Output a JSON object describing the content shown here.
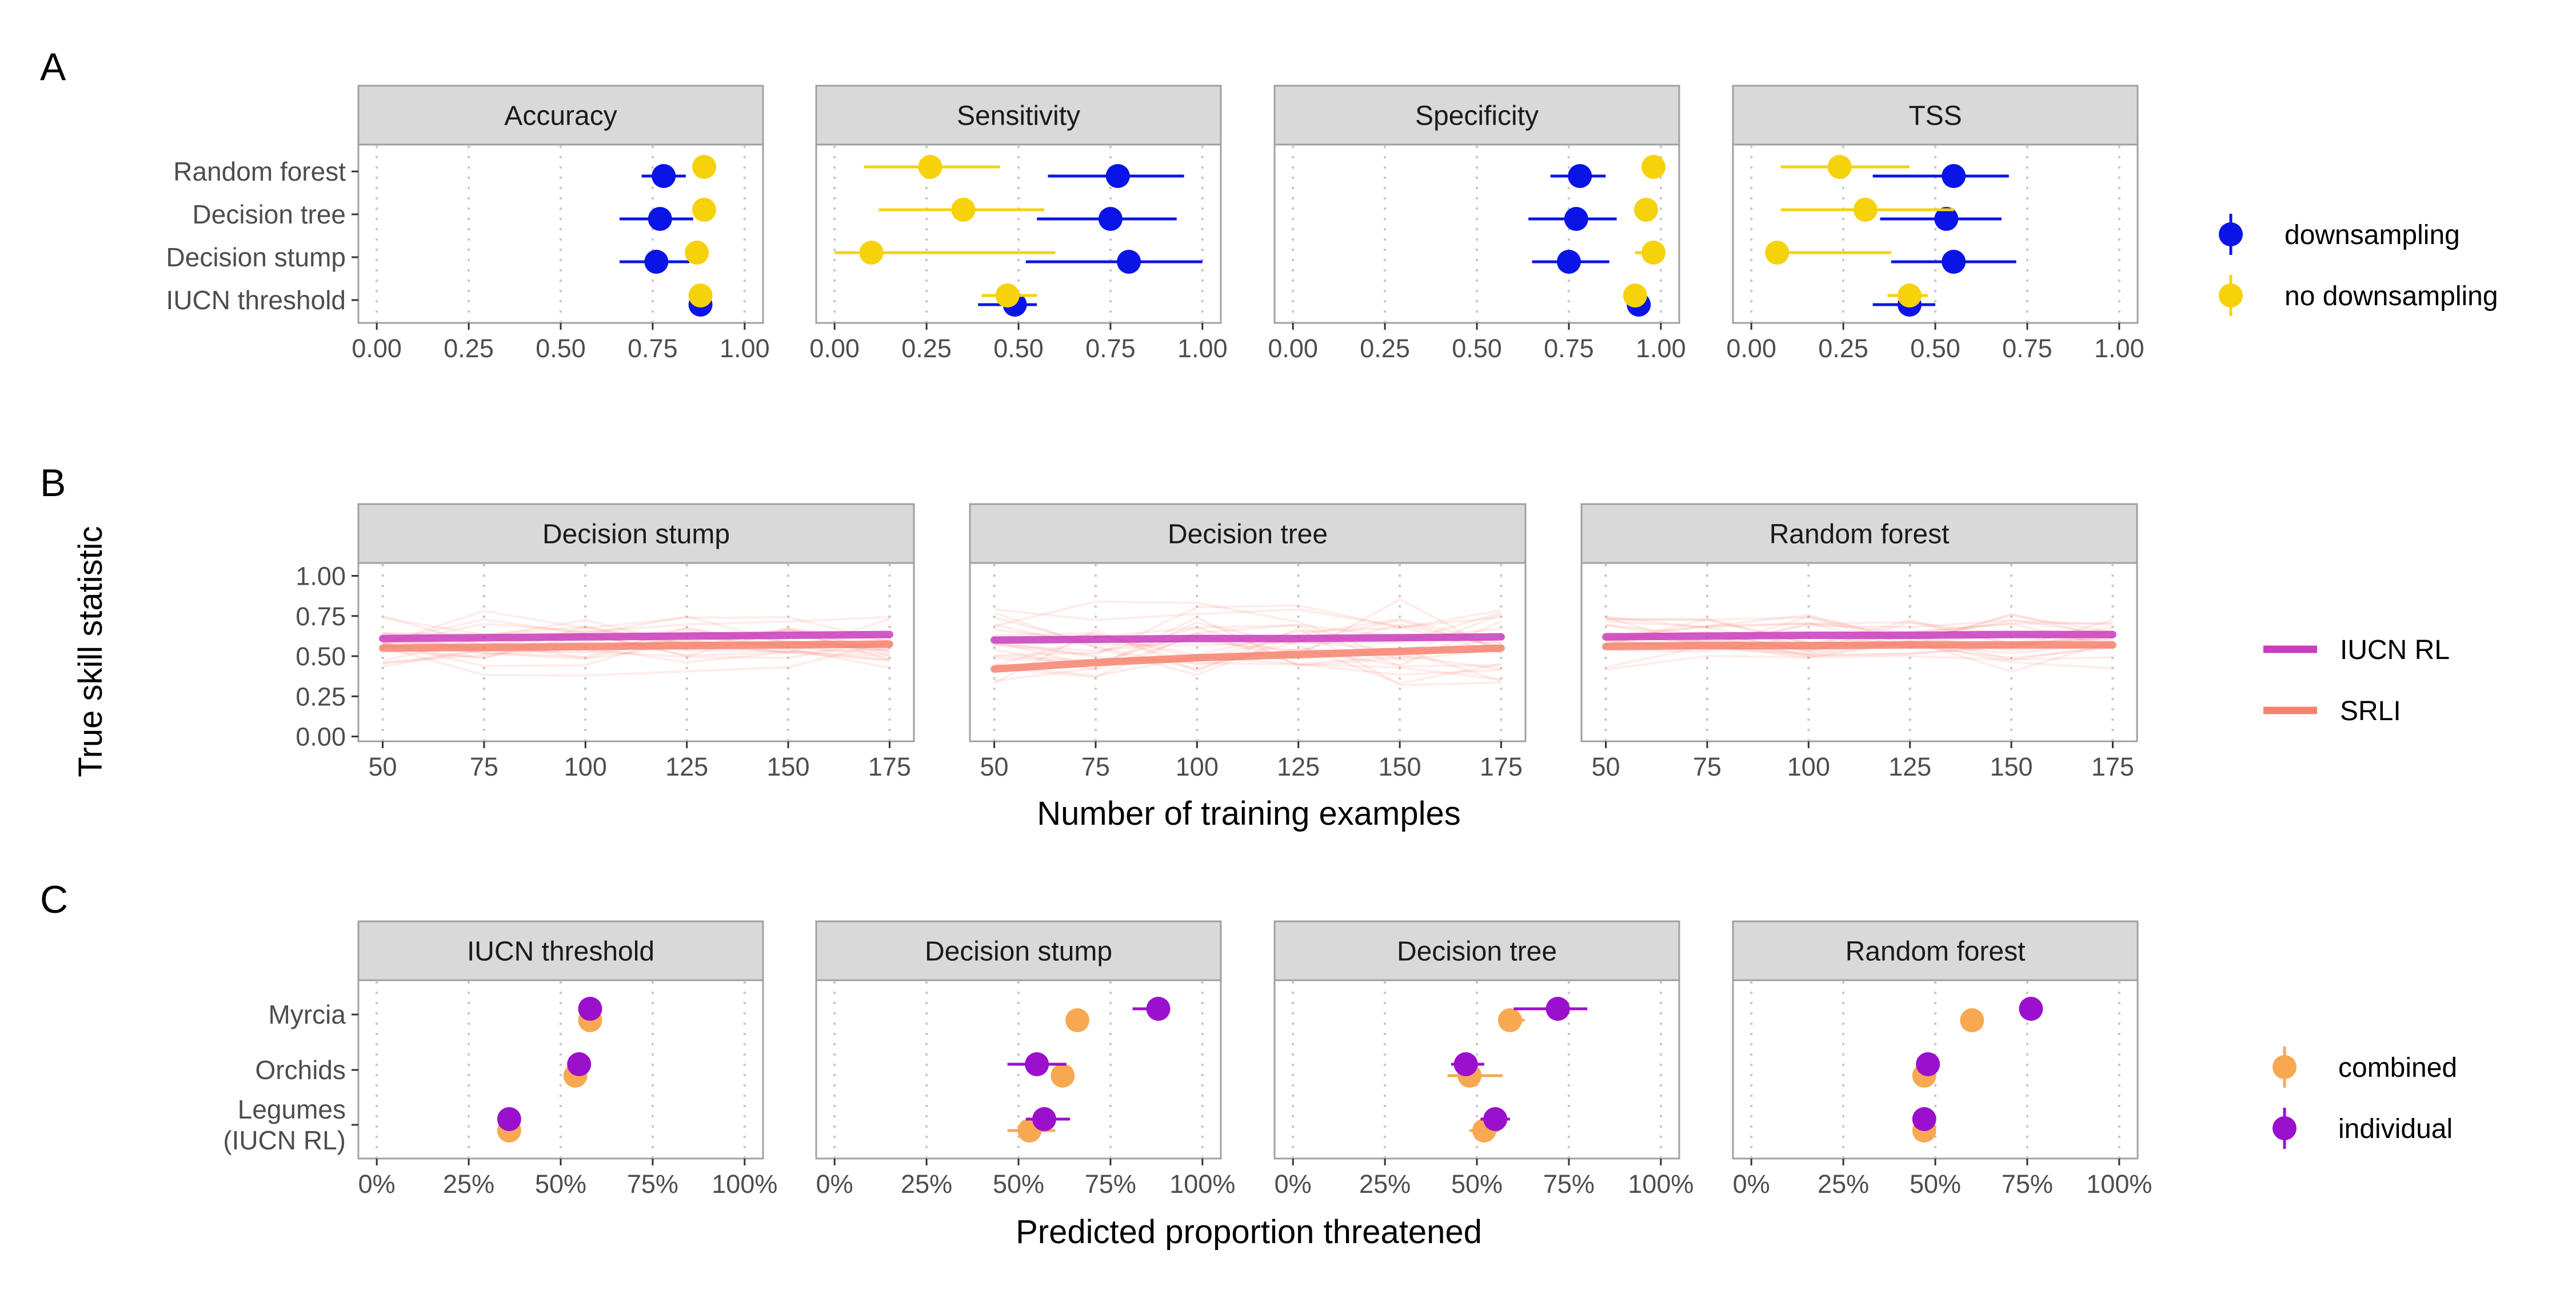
{
  "panel_tags": [
    "A",
    "B",
    "C"
  ],
  "colors": {
    "downsampling": "#0a14e6",
    "no_downsampling": "#f5d20a",
    "iucn_rl": "#c83cbe",
    "srli": "#f5826e",
    "combined": "#f9a852",
    "individual": "#9a10cc",
    "strip_bg": "#d9d9d9",
    "panel_border": "#a0a0a0",
    "grid": "#c8c8c8"
  },
  "chart_data": [
    {
      "panel": "A",
      "type": "scatter",
      "subtype": "dot-whisker",
      "facets": [
        "Accuracy",
        "Sensitivity",
        "Specificity",
        "TSS"
      ],
      "categories": [
        "Random forest",
        "Decision tree",
        "Decision stump",
        "IUCN threshold"
      ],
      "xlim": [
        -0.05,
        1.05
      ],
      "xticks": [
        0,
        0.25,
        0.5,
        0.75,
        1
      ],
      "xtick_labels": [
        "0.00",
        "0.25",
        "0.50",
        "0.75",
        "1.00"
      ],
      "grid": "vertical dotted",
      "legend_position": "right",
      "series": [
        {
          "name": "downsampling",
          "color": "#0a14e6",
          "values": {
            "Accuracy": [
              [
                0.78,
                0.72,
                0.84
              ],
              [
                0.77,
                0.66,
                0.86
              ],
              [
                0.76,
                0.66,
                0.85
              ],
              [
                0.88,
                0.88,
                0.88
              ]
            ],
            "Sensitivity": [
              [
                0.77,
                0.58,
                0.95
              ],
              [
                0.75,
                0.55,
                0.93
              ],
              [
                0.8,
                0.52,
                1.0
              ],
              [
                0.49,
                0.39,
                0.55
              ]
            ],
            "Specificity": [
              [
                0.78,
                0.7,
                0.85
              ],
              [
                0.77,
                0.64,
                0.88
              ],
              [
                0.75,
                0.65,
                0.86
              ],
              [
                0.94,
                0.94,
                0.94
              ]
            ],
            "TSS": [
              [
                0.55,
                0.33,
                0.7
              ],
              [
                0.53,
                0.35,
                0.68
              ],
              [
                0.55,
                0.38,
                0.72
              ],
              [
                0.43,
                0.33,
                0.5
              ]
            ]
          }
        },
        {
          "name": "no downsampling",
          "color": "#f5d20a",
          "values": {
            "Accuracy": [
              [
                0.89,
                0.89,
                0.89
              ],
              [
                0.89,
                0.86,
                0.9
              ],
              [
                0.87,
                0.87,
                0.88
              ],
              [
                0.88,
                0.88,
                0.88
              ]
            ],
            "Sensitivity": [
              [
                0.26,
                0.08,
                0.45
              ],
              [
                0.35,
                0.12,
                0.57
              ],
              [
                0.1,
                0.0,
                0.6
              ],
              [
                0.47,
                0.4,
                0.55
              ]
            ],
            "Specificity": [
              [
                0.98,
                0.98,
                0.98
              ],
              [
                0.96,
                0.93,
                0.98
              ],
              [
                0.98,
                0.93,
                1.0
              ],
              [
                0.93,
                0.93,
                0.93
              ]
            ],
            "TSS": [
              [
                0.24,
                0.08,
                0.43
              ],
              [
                0.31,
                0.08,
                0.55
              ],
              [
                0.07,
                0.05,
                0.38
              ],
              [
                0.43,
                0.37,
                0.48
              ]
            ]
          }
        }
      ]
    },
    {
      "panel": "B",
      "type": "line",
      "facets": [
        "Decision stump",
        "Decision tree",
        "Random forest"
      ],
      "xlabel": "Number of training examples",
      "ylabel": "True skill statistic",
      "xlim": [
        44,
        181
      ],
      "ylim": [
        -0.03,
        1.08
      ],
      "xticks": [
        50,
        75,
        100,
        125,
        150,
        175
      ],
      "yticks": [
        0,
        0.25,
        0.5,
        0.75,
        1
      ],
      "ytick_labels": [
        "0.00",
        "0.25",
        "0.50",
        "0.75",
        "1.00"
      ],
      "grid": "vertical dotted",
      "legend_position": "right",
      "x": [
        50,
        75,
        100,
        125,
        150,
        175
      ],
      "series": [
        {
          "name": "IUCN RL",
          "color": "#c83cbe",
          "values": {
            "Decision stump": [
              0.61,
              0.615,
              0.62,
              0.625,
              0.63,
              0.635
            ],
            "Decision tree": [
              0.6,
              0.605,
              0.61,
              0.61,
              0.615,
              0.62
            ],
            "Random forest": [
              0.62,
              0.625,
              0.63,
              0.63,
              0.635,
              0.635
            ]
          }
        },
        {
          "name": "SRLI",
          "color": "#f5826e",
          "values": {
            "Decision stump": [
              0.55,
              0.555,
              0.56,
              0.565,
              0.57,
              0.575
            ],
            "Decision tree": [
              0.42,
              0.46,
              0.49,
              0.51,
              0.53,
              0.55
            ],
            "Random forest": [
              0.56,
              0.565,
              0.565,
              0.57,
              0.57,
              0.57
            ]
          }
        }
      ]
    },
    {
      "panel": "C",
      "type": "scatter",
      "subtype": "dot-whisker",
      "facets": [
        "IUCN threshold",
        "Decision stump",
        "Decision tree",
        "Random forest"
      ],
      "categories": [
        "Myrcia",
        "Orchids",
        "Legumes\n(IUCN RL)"
      ],
      "xlabel": "Predicted proportion threatened",
      "xlim": [
        -0.05,
        1.05
      ],
      "xticks": [
        0,
        0.25,
        0.5,
        0.75,
        1
      ],
      "xtick_labels": [
        "0%",
        "25%",
        "50%",
        "75%",
        "100%"
      ],
      "grid": "vertical dotted",
      "legend_position": "right",
      "series": [
        {
          "name": "combined",
          "color": "#f9a852",
          "values": {
            "IUCN threshold": [
              [
                0.58,
                0.58,
                0.58
              ],
              [
                0.54,
                0.54,
                0.54
              ],
              [
                0.36,
                0.36,
                0.36
              ]
            ],
            "Decision stump": [
              [
                0.66,
                0.66,
                0.66
              ],
              [
                0.62,
                0.62,
                0.62
              ],
              [
                0.53,
                0.47,
                0.6
              ]
            ],
            "Decision tree": [
              [
                0.59,
                0.56,
                0.63
              ],
              [
                0.48,
                0.42,
                0.57
              ],
              [
                0.52,
                0.48,
                0.56
              ]
            ],
            "Random forest": [
              [
                0.6,
                0.6,
                0.6
              ],
              [
                0.47,
                0.47,
                0.47
              ],
              [
                0.47,
                0.47,
                0.47
              ]
            ]
          }
        },
        {
          "name": "individual",
          "color": "#9a10cc",
          "values": {
            "IUCN threshold": [
              [
                0.58,
                0.58,
                0.58
              ],
              [
                0.55,
                0.55,
                0.55
              ],
              [
                0.36,
                0.36,
                0.36
              ]
            ],
            "Decision stump": [
              [
                0.88,
                0.81,
                0.89
              ],
              [
                0.55,
                0.47,
                0.63
              ],
              [
                0.57,
                0.52,
                0.64
              ]
            ],
            "Decision tree": [
              [
                0.72,
                0.6,
                0.8
              ],
              [
                0.47,
                0.43,
                0.52
              ],
              [
                0.55,
                0.51,
                0.59
              ]
            ],
            "Random forest": [
              [
                0.76,
                0.76,
                0.76
              ],
              [
                0.48,
                0.48,
                0.48
              ],
              [
                0.47,
                0.47,
                0.47
              ]
            ]
          }
        }
      ]
    }
  ]
}
